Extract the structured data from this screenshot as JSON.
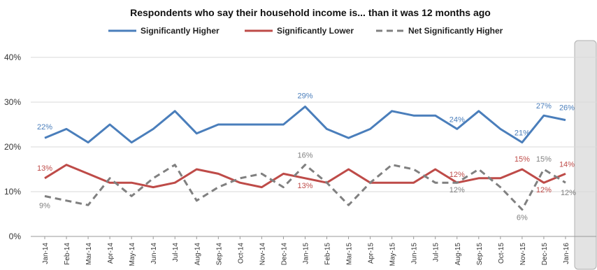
{
  "chart_data": {
    "type": "line",
    "title": "Respondents who say their household income is... than it was 12 months ago",
    "xlabel": "",
    "ylabel": "",
    "ylim": [
      0,
      40
    ],
    "yticks": [
      "0%",
      "10%",
      "20%",
      "30%",
      "40%"
    ],
    "categories": [
      "Jan-14",
      "Feb-14",
      "Mar-14",
      "Apr-14",
      "May-14",
      "Jun-14",
      "Jul-14",
      "Aug-14",
      "Sep-14",
      "Oct-14",
      "Nov-14",
      "Dec-14",
      "Jan-15",
      "Feb-15",
      "Mar-15",
      "Apr-15",
      "May-15",
      "Jun-15",
      "Jul-15",
      "Aug-15",
      "Sep-15",
      "Oct-15",
      "Nov-15",
      "Dec-15",
      "Jan-16"
    ],
    "grid": true,
    "legend_position": "top",
    "highlight_category": "Jan-16",
    "series": [
      {
        "name": "Significantly Higher",
        "color": "#4a7ebb",
        "style": "solid",
        "values": [
          22,
          24,
          21,
          25,
          21,
          24,
          28,
          23,
          25,
          25,
          25,
          25,
          29,
          24,
          22,
          24,
          28,
          27,
          27,
          24,
          28,
          24,
          21,
          27,
          26
        ],
        "labels": {
          "0": "22%",
          "12": "29%",
          "19": "24%",
          "22": "21%",
          "23": "27%",
          "24": "26%"
        }
      },
      {
        "name": "Significantly Lower",
        "color": "#be4b48",
        "style": "solid",
        "values": [
          13,
          16,
          14,
          12,
          12,
          11,
          12,
          15,
          14,
          12,
          11,
          14,
          13,
          12,
          15,
          12,
          12,
          12,
          15,
          12,
          13,
          13,
          15,
          12,
          14
        ],
        "labels": {
          "0": "13%",
          "12": "13%",
          "19": "12%",
          "22": "15%",
          "23": "12%",
          "24": "14%"
        }
      },
      {
        "name": "Net Significantly Higher",
        "color": "#808080",
        "style": "dashed",
        "values": [
          9,
          8,
          7,
          13,
          9,
          13,
          16,
          8,
          11,
          13,
          14,
          11,
          16,
          12,
          7,
          12,
          16,
          15,
          12,
          12,
          15,
          11,
          6,
          15,
          12
        ],
        "labels": {
          "0": "9%",
          "12": "16%",
          "19": "12%",
          "22": "6%",
          "23": "15%",
          "24": "12%"
        }
      }
    ]
  }
}
